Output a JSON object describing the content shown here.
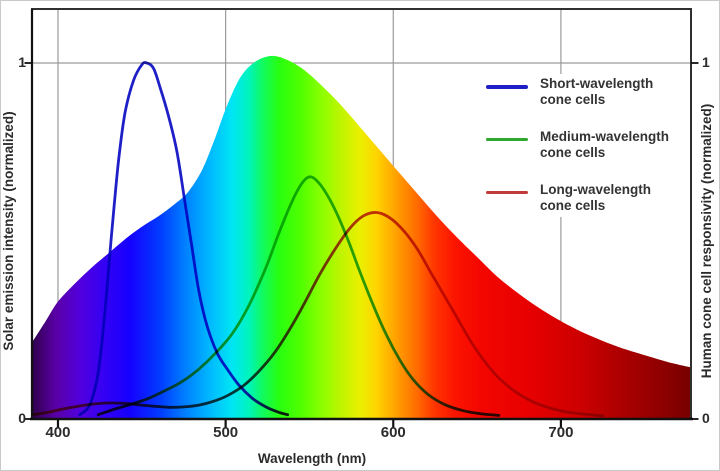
{
  "chart_data": {
    "type": "area+line",
    "title": "",
    "xlabel": "Wavelength (nm)",
    "ylabel_left": "Solar emission intensity (normalized)",
    "ylabel_right": "Human cone cell responsivity (normalized)",
    "x_range_nm": [
      384.5,
      777.6
    ],
    "y_range": [
      0,
      1.15
    ],
    "grid": {
      "color": "#9a9a9a",
      "x_nm": [
        400,
        500,
        600,
        700
      ],
      "y_values": [
        1
      ]
    },
    "x_ticks": [
      {
        "nm": 400,
        "label": "400"
      },
      {
        "nm": 500,
        "label": "500"
      },
      {
        "nm": 600,
        "label": "600"
      },
      {
        "nm": 700,
        "label": "700"
      }
    ],
    "y_ticks": [
      {
        "value": 1,
        "label": "1"
      },
      {
        "value": 0,
        "label": "0"
      }
    ],
    "legend_position": "top-right",
    "solar_area": {
      "name": "Solar emission intensity",
      "fill": "visible-spectrum-gradient",
      "points": [
        [
          384.5,
          0.215
        ],
        [
          392,
          0.27
        ],
        [
          400,
          0.33
        ],
        [
          410,
          0.38
        ],
        [
          420,
          0.425
        ],
        [
          430,
          0.465
        ],
        [
          440,
          0.505
        ],
        [
          450,
          0.54
        ],
        [
          460,
          0.57
        ],
        [
          470,
          0.605
        ],
        [
          478,
          0.64
        ],
        [
          486,
          0.7
        ],
        [
          493,
          0.78
        ],
        [
          500,
          0.87
        ],
        [
          507,
          0.945
        ],
        [
          513,
          0.985
        ],
        [
          520,
          1.01
        ],
        [
          528,
          1.02
        ],
        [
          536,
          1.01
        ],
        [
          544,
          0.99
        ],
        [
          552,
          0.96
        ],
        [
          562,
          0.915
        ],
        [
          572,
          0.865
        ],
        [
          582,
          0.81
        ],
        [
          592,
          0.755
        ],
        [
          602,
          0.7
        ],
        [
          614,
          0.635
        ],
        [
          626,
          0.57
        ],
        [
          638,
          0.51
        ],
        [
          650,
          0.455
        ],
        [
          662,
          0.4
        ],
        [
          674,
          0.355
        ],
        [
          686,
          0.315
        ],
        [
          698,
          0.28
        ],
        [
          710,
          0.25
        ],
        [
          722,
          0.225
        ],
        [
          734,
          0.203
        ],
        [
          746,
          0.185
        ],
        [
          758,
          0.168
        ],
        [
          768,
          0.155
        ],
        [
          777.6,
          0.145
        ]
      ]
    },
    "series": [
      {
        "name": "Short-wavelength cone cells",
        "color": "#1f1fc8",
        "peak_nm": 453,
        "peak_value": 1.0,
        "points": [
          [
            413,
            0.012
          ],
          [
            419,
            0.04
          ],
          [
            424,
            0.13
          ],
          [
            428,
            0.3
          ],
          [
            432,
            0.52
          ],
          [
            436,
            0.72
          ],
          [
            440,
            0.86
          ],
          [
            445,
            0.95
          ],
          [
            450,
            0.995
          ],
          [
            453,
            1.0
          ],
          [
            457,
            0.985
          ],
          [
            461,
            0.93
          ],
          [
            466,
            0.85
          ],
          [
            471,
            0.75
          ],
          [
            476,
            0.6
          ],
          [
            480,
            0.48
          ],
          [
            484,
            0.36
          ],
          [
            489,
            0.26
          ],
          [
            495,
            0.185
          ],
          [
            501,
            0.14
          ],
          [
            508,
            0.095
          ],
          [
            516,
            0.058
          ],
          [
            524,
            0.034
          ],
          [
            531,
            0.02
          ],
          [
            537,
            0.012
          ]
        ]
      },
      {
        "name": "Medium-wavelength cone cells",
        "color": "#2fa82f",
        "peak_nm": 548,
        "peak_value": 0.68,
        "points": [
          [
            424,
            0.012
          ],
          [
            434,
            0.028
          ],
          [
            444,
            0.042
          ],
          [
            454,
            0.058
          ],
          [
            464,
            0.08
          ],
          [
            474,
            0.105
          ],
          [
            484,
            0.14
          ],
          [
            494,
            0.185
          ],
          [
            504,
            0.24
          ],
          [
            514,
            0.32
          ],
          [
            524,
            0.425
          ],
          [
            532,
            0.525
          ],
          [
            540,
            0.615
          ],
          [
            546,
            0.665
          ],
          [
            551,
            0.68
          ],
          [
            557,
            0.655
          ],
          [
            564,
            0.6
          ],
          [
            572,
            0.515
          ],
          [
            580,
            0.415
          ],
          [
            588,
            0.32
          ],
          [
            596,
            0.235
          ],
          [
            604,
            0.165
          ],
          [
            612,
            0.11
          ],
          [
            621,
            0.068
          ],
          [
            631,
            0.04
          ],
          [
            642,
            0.023
          ],
          [
            652,
            0.015
          ],
          [
            663,
            0.01
          ]
        ]
      },
      {
        "name": "Long-wavelength cone cells",
        "color": "#c03a3a",
        "peak_nm": 590,
        "peak_value": 0.58,
        "points": [
          [
            385,
            0.012
          ],
          [
            394,
            0.019
          ],
          [
            403,
            0.028
          ],
          [
            412,
            0.036
          ],
          [
            421,
            0.042
          ],
          [
            430,
            0.045
          ],
          [
            439,
            0.044
          ],
          [
            448,
            0.04
          ],
          [
            457,
            0.036
          ],
          [
            466,
            0.033
          ],
          [
            475,
            0.034
          ],
          [
            484,
            0.039
          ],
          [
            493,
            0.05
          ],
          [
            502,
            0.068
          ],
          [
            511,
            0.095
          ],
          [
            520,
            0.135
          ],
          [
            529,
            0.185
          ],
          [
            538,
            0.25
          ],
          [
            547,
            0.325
          ],
          [
            556,
            0.405
          ],
          [
            565,
            0.475
          ],
          [
            574,
            0.535
          ],
          [
            582,
            0.57
          ],
          [
            590,
            0.58
          ],
          [
            598,
            0.565
          ],
          [
            606,
            0.53
          ],
          [
            614,
            0.48
          ],
          [
            622,
            0.415
          ],
          [
            630,
            0.35
          ],
          [
            638,
            0.285
          ],
          [
            646,
            0.22
          ],
          [
            654,
            0.165
          ],
          [
            662,
            0.12
          ],
          [
            671,
            0.083
          ],
          [
            680,
            0.056
          ],
          [
            690,
            0.036
          ],
          [
            701,
            0.022
          ],
          [
            713,
            0.014
          ],
          [
            725,
            0.009
          ]
        ]
      }
    ],
    "spectrum_gradient": [
      {
        "nm": 385,
        "color": "#30004d"
      },
      {
        "nm": 399,
        "color": "#5a00a8"
      },
      {
        "nm": 414,
        "color": "#5000e0"
      },
      {
        "nm": 428,
        "color": "#3300f4"
      },
      {
        "nm": 443,
        "color": "#1500ff"
      },
      {
        "nm": 462,
        "color": "#0040ff"
      },
      {
        "nm": 476,
        "color": "#0080ff"
      },
      {
        "nm": 491,
        "color": "#00baff"
      },
      {
        "nm": 504,
        "color": "#00e6f4"
      },
      {
        "nm": 514,
        "color": "#00f4bc"
      },
      {
        "nm": 522,
        "color": "#10fa60"
      },
      {
        "nm": 532,
        "color": "#28ff10"
      },
      {
        "nm": 545,
        "color": "#50ff00"
      },
      {
        "nm": 557,
        "color": "#8aff00"
      },
      {
        "nm": 569,
        "color": "#c0f400"
      },
      {
        "nm": 580,
        "color": "#eaf000"
      },
      {
        "nm": 590,
        "color": "#ffd400"
      },
      {
        "nm": 601,
        "color": "#ffa400"
      },
      {
        "nm": 614,
        "color": "#ff6c00"
      },
      {
        "nm": 625,
        "color": "#ff3400"
      },
      {
        "nm": 637,
        "color": "#fc1400"
      },
      {
        "nm": 652,
        "color": "#f40600"
      },
      {
        "nm": 682,
        "color": "#e60000"
      },
      {
        "nm": 712,
        "color": "#cc0000"
      },
      {
        "nm": 736,
        "color": "#ac0000"
      },
      {
        "nm": 757,
        "color": "#920000"
      },
      {
        "nm": 778,
        "color": "#780000"
      }
    ]
  }
}
